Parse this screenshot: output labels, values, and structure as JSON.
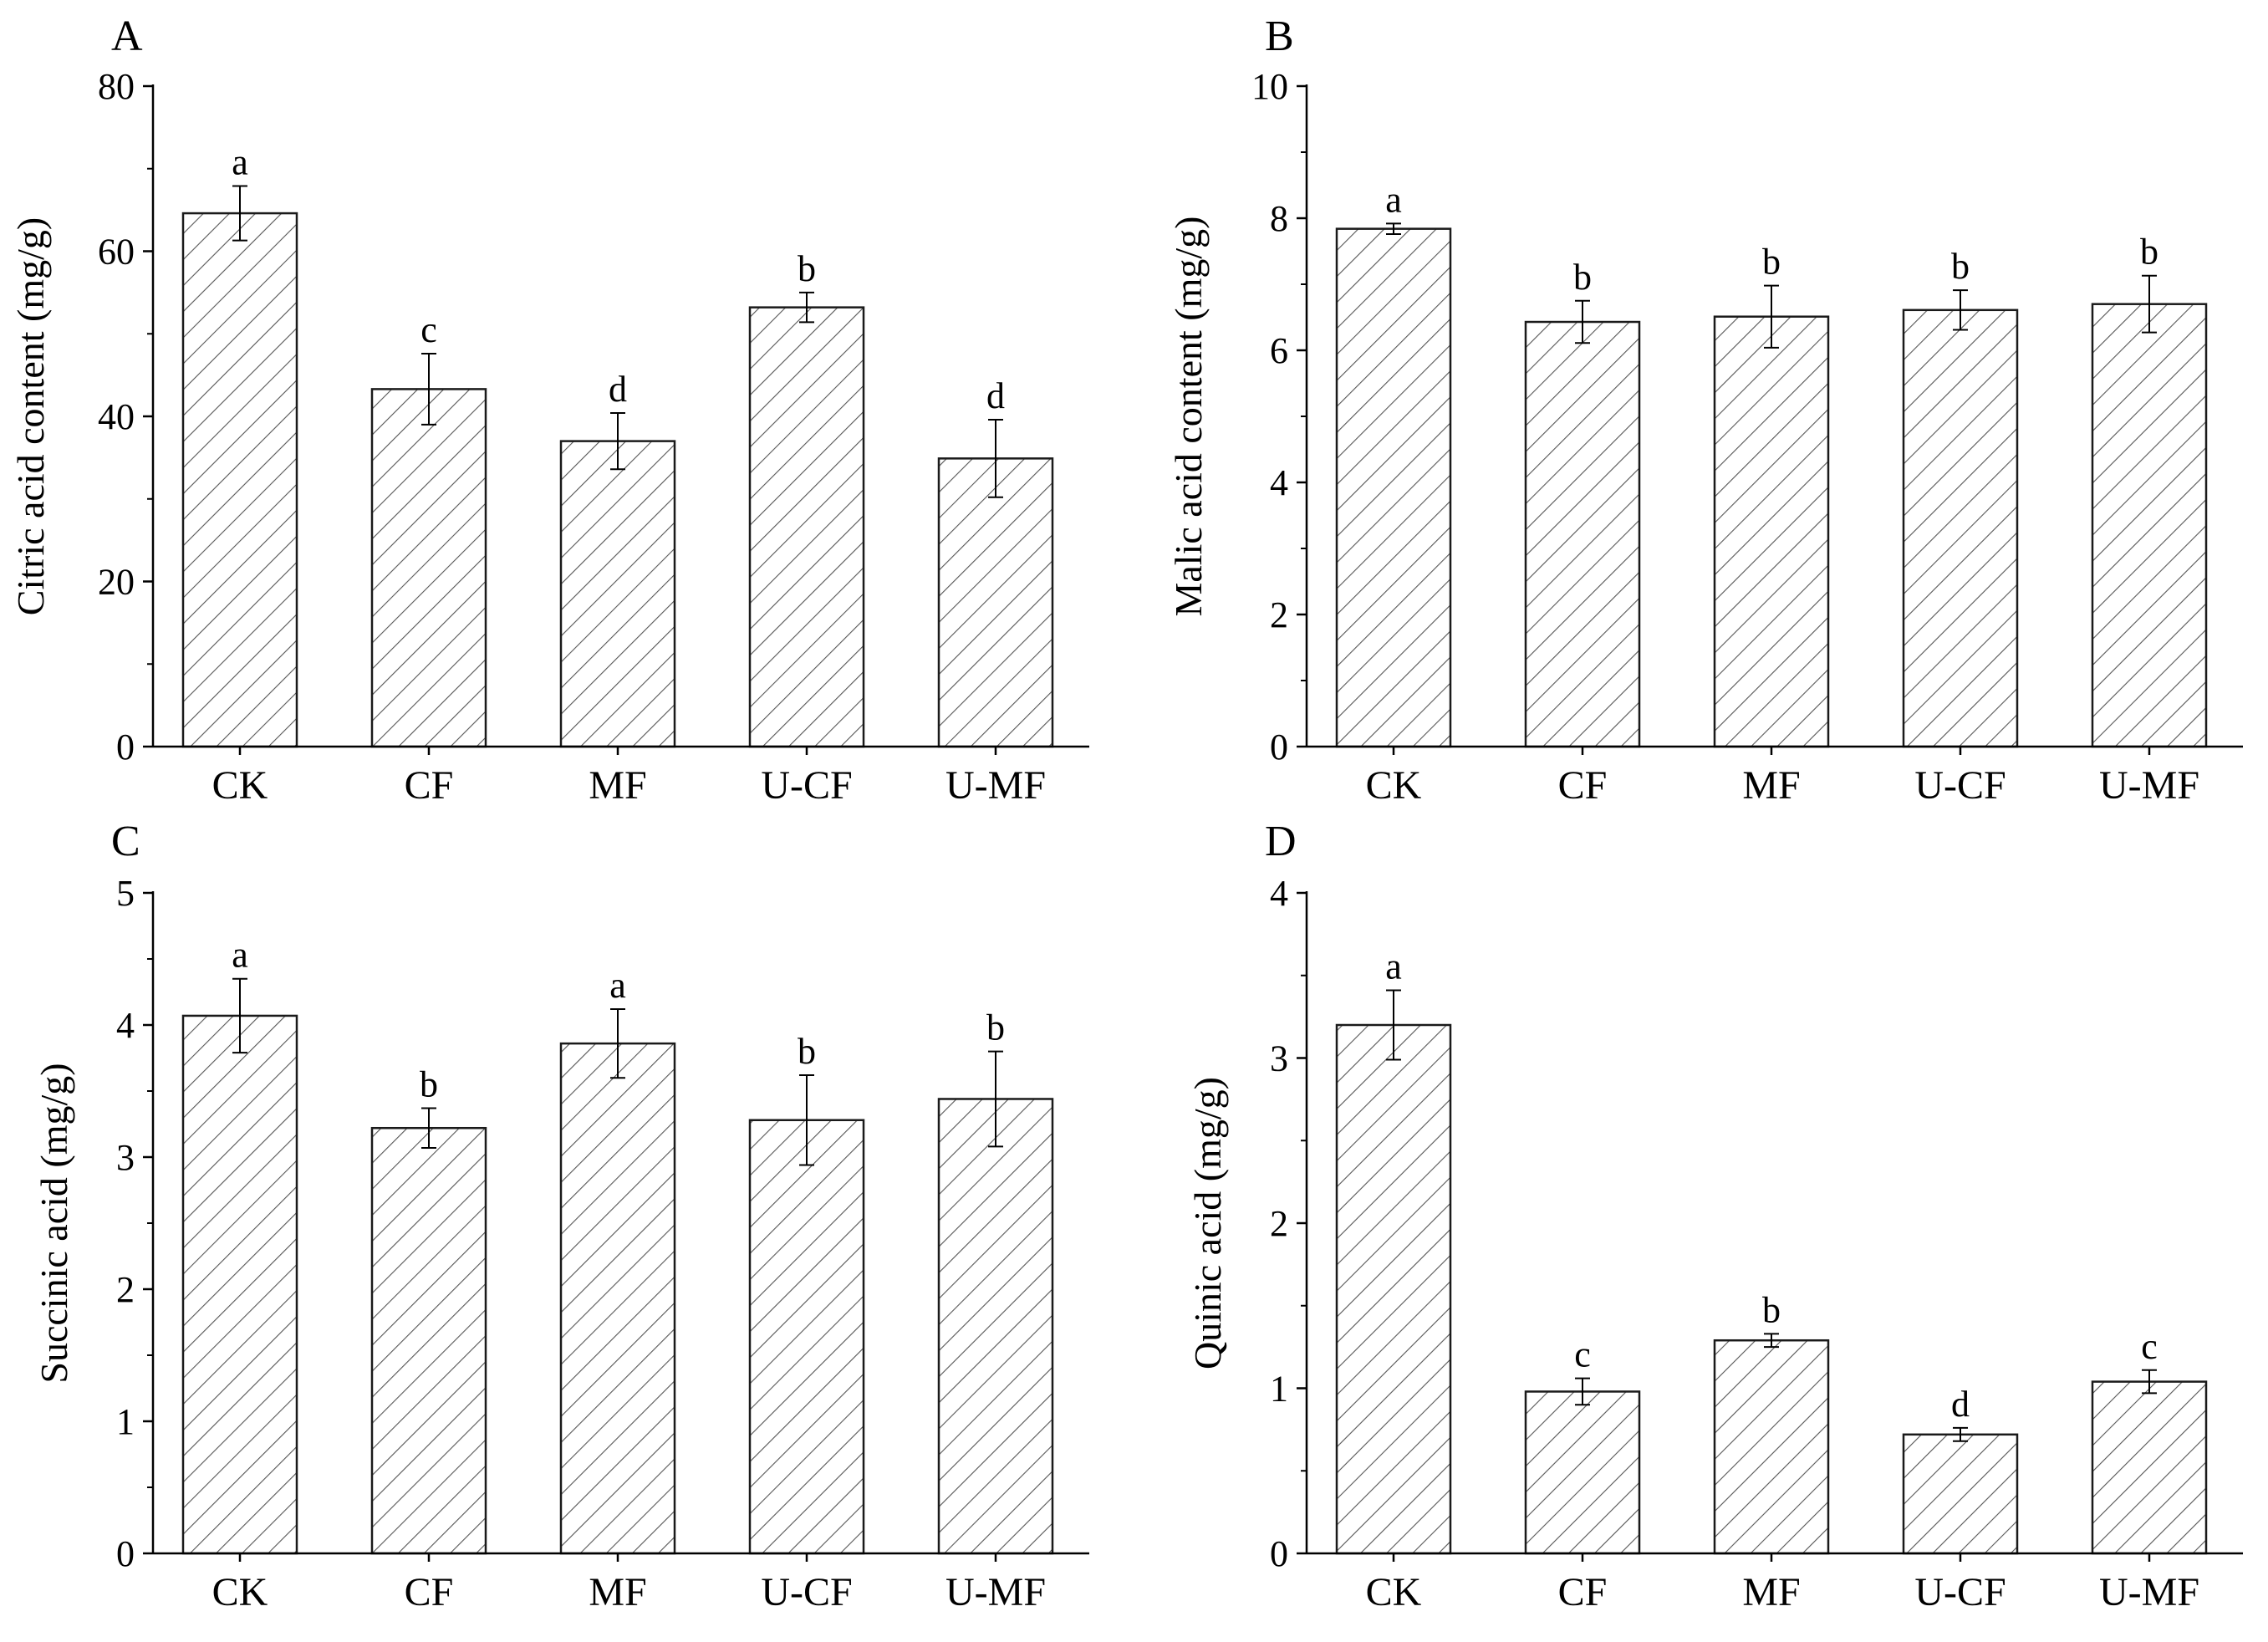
{
  "figure": {
    "colors": {
      "bar_fill": "#ffffff",
      "bar_stroke": "#1a1a1a",
      "hatch": "#555555",
      "axis": "#000000",
      "text": "#000000"
    }
  },
  "chart_data": [
    {
      "panel": "A",
      "type": "bar",
      "ylabel": "Citric acid content (mg/g)",
      "ylim": [
        0,
        80
      ],
      "yticks": [
        0,
        20,
        40,
        60,
        80
      ],
      "categories": [
        "CK",
        "CF",
        "MF",
        "U-CF",
        "U-MF"
      ],
      "values": [
        64.6,
        43.3,
        37.0,
        53.2,
        34.9
      ],
      "errors": [
        3.3,
        4.3,
        3.4,
        1.8,
        4.7
      ],
      "letters": [
        "a",
        "c",
        "d",
        "b",
        "d"
      ]
    },
    {
      "panel": "B",
      "type": "bar",
      "ylabel": "Malic acid content (mg/g)",
      "ylim": [
        0,
        10
      ],
      "yticks": [
        0,
        2,
        4,
        6,
        8,
        10
      ],
      "categories": [
        "CK",
        "CF",
        "MF",
        "U-CF",
        "U-MF"
      ],
      "values": [
        7.84,
        6.43,
        6.51,
        6.61,
        6.7
      ],
      "errors": [
        0.08,
        0.32,
        0.47,
        0.3,
        0.43
      ],
      "letters": [
        "a",
        "b",
        "b",
        "b",
        "b"
      ]
    },
    {
      "panel": "C",
      "type": "bar",
      "ylabel": "Succinic acid (mg/g)",
      "ylim": [
        0,
        5
      ],
      "yticks": [
        0,
        1,
        2,
        3,
        4,
        5
      ],
      "categories": [
        "CK",
        "CF",
        "MF",
        "U-CF",
        "U-MF"
      ],
      "values": [
        4.07,
        3.22,
        3.86,
        3.28,
        3.44
      ],
      "errors": [
        0.28,
        0.15,
        0.26,
        0.34,
        0.36
      ],
      "letters": [
        "a",
        "b",
        "a",
        "b",
        "b"
      ]
    },
    {
      "panel": "D",
      "type": "bar",
      "ylabel": "Quinic acid (mg/g)",
      "ylim": [
        0,
        4
      ],
      "yticks": [
        0,
        1,
        2,
        3,
        4
      ],
      "categories": [
        "CK",
        "CF",
        "MF",
        "U-CF",
        "U-MF"
      ],
      "values": [
        3.2,
        0.98,
        1.29,
        0.72,
        1.04
      ],
      "errors": [
        0.21,
        0.08,
        0.04,
        0.04,
        0.07
      ],
      "letters": [
        "a",
        "c",
        "b",
        "d",
        "c"
      ]
    }
  ]
}
